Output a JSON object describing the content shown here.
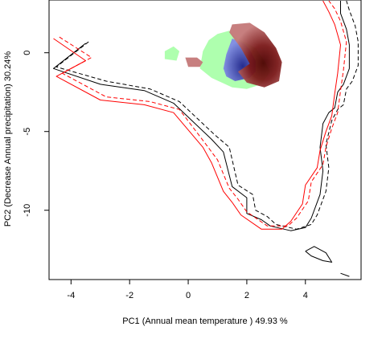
{
  "chart_data": {
    "type": "scatter",
    "title": "",
    "xlabel": "PC1 (Annual mean temperature ) 49.93 %",
    "ylabel": "PC2 (Decrease Annual precipitation) 30.24%",
    "xlim": [
      -4.75,
      5.9
    ],
    "ylim": [
      -14.4,
      3.35
    ],
    "x_ticks": [
      -4,
      -2,
      0,
      2,
      4
    ],
    "y_ticks": [
      0,
      -5,
      -10
    ],
    "x_tick_labels": [
      "-4",
      "-2",
      "0",
      "2",
      "4"
    ],
    "y_tick_labels": [
      "0",
      "-5",
      "-10"
    ],
    "colors": {
      "black_solid": "#000000",
      "black_dashed": "#000000",
      "red_solid": "#ff0000",
      "red_dashed": "#ff0000",
      "green_area": "#aaffaa",
      "blue_area": "#5c63d6",
      "brown_dark": "#4d0000",
      "brown_light": "#c47878"
    },
    "series": [
      {
        "style": "black-solid",
        "points": [
          [
            -3.5,
            0.6
          ],
          [
            -4.6,
            -1.0
          ],
          [
            -3.0,
            -2.0
          ],
          [
            -1.5,
            -2.4
          ],
          [
            -0.5,
            -3.2
          ],
          [
            0.8,
            -5.5
          ],
          [
            1.2,
            -6.3
          ],
          [
            1.5,
            -8.5
          ],
          [
            2.0,
            -9.2
          ],
          [
            2.0,
            -10.2
          ],
          [
            2.5,
            -10.6
          ],
          [
            2.8,
            -11.0
          ],
          [
            3.5,
            -11.3
          ],
          [
            4.0,
            -11.1
          ],
          [
            4.2,
            -10.5
          ],
          [
            4.5,
            -9.0
          ],
          [
            4.6,
            -7.5
          ],
          [
            4.5,
            -6.0
          ],
          [
            4.6,
            -4.5
          ],
          [
            4.8,
            -3.8
          ],
          [
            5.0,
            -3.5
          ],
          [
            5.1,
            -2.5
          ],
          [
            5.3,
            -2.0
          ],
          [
            5.5,
            -1.0
          ],
          [
            5.5,
            0.5
          ],
          [
            5.4,
            1.5
          ],
          [
            5.2,
            2.5
          ],
          [
            5.2,
            3.3
          ]
        ]
      },
      {
        "style": "black-dashed",
        "points": [
          [
            -3.4,
            0.7
          ],
          [
            -4.5,
            -0.9
          ],
          [
            -2.8,
            -1.8
          ],
          [
            -1.3,
            -2.3
          ],
          [
            -0.3,
            -3.1
          ],
          [
            0.9,
            -5.2
          ],
          [
            1.4,
            -6.0
          ],
          [
            1.7,
            -8.4
          ],
          [
            2.2,
            -9.0
          ],
          [
            2.3,
            -10.0
          ],
          [
            2.7,
            -10.4
          ],
          [
            3.0,
            -10.9
          ],
          [
            3.7,
            -11.2
          ],
          [
            4.2,
            -10.9
          ],
          [
            4.4,
            -10.3
          ],
          [
            4.7,
            -8.8
          ],
          [
            4.8,
            -7.3
          ],
          [
            4.7,
            -5.8
          ],
          [
            4.9,
            -4.3
          ],
          [
            5.1,
            -3.6
          ],
          [
            5.3,
            -3.3
          ],
          [
            5.4,
            -2.3
          ],
          [
            5.6,
            -1.8
          ],
          [
            5.8,
            -0.8
          ],
          [
            5.8,
            0.7
          ],
          [
            5.7,
            1.7
          ],
          [
            5.5,
            2.7
          ],
          [
            5.4,
            3.3
          ]
        ]
      },
      {
        "style": "red-solid",
        "points": [
          [
            -4.6,
            0.9
          ],
          [
            -3.5,
            -0.5
          ],
          [
            -4.5,
            -1.5
          ],
          [
            -3.0,
            -3.0
          ],
          [
            -1.5,
            -3.3
          ],
          [
            -0.5,
            -3.8
          ],
          [
            0.5,
            -6.0
          ],
          [
            0.8,
            -7.0
          ],
          [
            1.2,
            -8.8
          ],
          [
            1.5,
            -9.5
          ],
          [
            1.8,
            -10.3
          ],
          [
            2.5,
            -11.2
          ],
          [
            3.2,
            -11.2
          ],
          [
            3.5,
            -10.7
          ],
          [
            3.9,
            -9.6
          ],
          [
            4.0,
            -8.4
          ],
          [
            4.4,
            -7.3
          ],
          [
            4.5,
            -6.2
          ],
          [
            4.7,
            -5.0
          ],
          [
            4.9,
            -4.0
          ],
          [
            5.0,
            -2.6
          ],
          [
            5.1,
            -1.3
          ],
          [
            5.2,
            0.5
          ],
          [
            5.0,
            1.8
          ],
          [
            4.8,
            2.6
          ],
          [
            4.6,
            3.3
          ]
        ]
      },
      {
        "style": "red-dashed",
        "points": [
          [
            -4.4,
            1.0
          ],
          [
            -3.3,
            -0.3
          ],
          [
            -4.3,
            -1.3
          ],
          [
            -2.8,
            -2.8
          ],
          [
            -1.3,
            -3.1
          ],
          [
            -0.3,
            -3.6
          ],
          [
            0.6,
            -5.8
          ],
          [
            1.0,
            -6.8
          ],
          [
            1.4,
            -8.6
          ],
          [
            1.7,
            -9.3
          ],
          [
            2.0,
            -10.1
          ],
          [
            2.7,
            -11.0
          ],
          [
            3.4,
            -11.0
          ],
          [
            3.7,
            -10.5
          ],
          [
            4.1,
            -9.4
          ],
          [
            4.2,
            -8.2
          ],
          [
            4.6,
            -7.1
          ],
          [
            4.7,
            -6.0
          ],
          [
            4.9,
            -4.8
          ],
          [
            5.1,
            -3.8
          ],
          [
            5.2,
            -2.4
          ],
          [
            5.3,
            -1.1
          ],
          [
            5.4,
            0.7
          ],
          [
            5.2,
            2.0
          ],
          [
            5.0,
            2.8
          ],
          [
            4.8,
            3.3
          ]
        ]
      },
      {
        "style": "black-solid",
        "points": [
          [
            4.0,
            -12.6
          ],
          [
            4.3,
            -12.3
          ],
          [
            4.7,
            -12.7
          ],
          [
            4.9,
            -13.3
          ],
          [
            4.6,
            -13.2
          ],
          [
            4.2,
            -12.9
          ],
          [
            4.0,
            -12.6
          ]
        ]
      },
      {
        "style": "black-solid",
        "points": [
          [
            5.2,
            -14.0
          ],
          [
            5.5,
            -14.2
          ]
        ]
      }
    ],
    "regions": [
      {
        "name": "green",
        "points": [
          [
            1.0,
            1.2
          ],
          [
            1.4,
            1.4
          ],
          [
            1.6,
            1.0
          ],
          [
            2.0,
            0.6
          ],
          [
            2.3,
            0.3
          ],
          [
            2.6,
            -0.5
          ],
          [
            2.8,
            -1.2
          ],
          [
            2.5,
            -2.0
          ],
          [
            2.0,
            -2.3
          ],
          [
            1.5,
            -2.2
          ],
          [
            0.8,
            -1.6
          ],
          [
            0.4,
            -1.0
          ],
          [
            0.5,
            0.1
          ],
          [
            0.7,
            0.8
          ],
          [
            1.0,
            1.2
          ]
        ]
      },
      {
        "name": "green",
        "points": [
          [
            -0.8,
            0.1
          ],
          [
            -0.5,
            0.4
          ],
          [
            -0.3,
            0.1
          ],
          [
            -0.4,
            -0.5
          ],
          [
            -0.8,
            -0.4
          ],
          [
            -0.8,
            0.1
          ]
        ]
      },
      {
        "name": "brown_light",
        "points": [
          [
            -0.1,
            -0.3
          ],
          [
            0.3,
            -0.3
          ],
          [
            0.5,
            -0.6
          ],
          [
            0.4,
            -0.9
          ],
          [
            0.0,
            -0.9
          ],
          [
            -0.1,
            -0.3
          ]
        ]
      },
      {
        "name": "blue",
        "points": [
          [
            1.5,
            0.9
          ],
          [
            1.9,
            0.6
          ],
          [
            2.1,
            0.2
          ],
          [
            2.3,
            -0.5
          ],
          [
            2.3,
            -1.2
          ],
          [
            2.1,
            -1.6
          ],
          [
            1.6,
            -1.8
          ],
          [
            1.3,
            -1.5
          ],
          [
            1.2,
            -1.0
          ],
          [
            1.3,
            -0.1
          ],
          [
            1.5,
            0.9
          ]
        ]
      },
      {
        "name": "brown",
        "points": [
          [
            1.5,
            1.8
          ],
          [
            2.1,
            1.9
          ],
          [
            2.6,
            1.3
          ],
          [
            3.0,
            0.3
          ],
          [
            3.2,
            -0.6
          ],
          [
            3.1,
            -1.8
          ],
          [
            2.6,
            -2.2
          ],
          [
            2.0,
            -1.9
          ],
          [
            1.7,
            -1.2
          ],
          [
            2.1,
            -0.7
          ],
          [
            1.8,
            0.3
          ],
          [
            1.6,
            0.8
          ],
          [
            1.4,
            1.3
          ],
          [
            1.5,
            1.8
          ]
        ]
      }
    ]
  }
}
